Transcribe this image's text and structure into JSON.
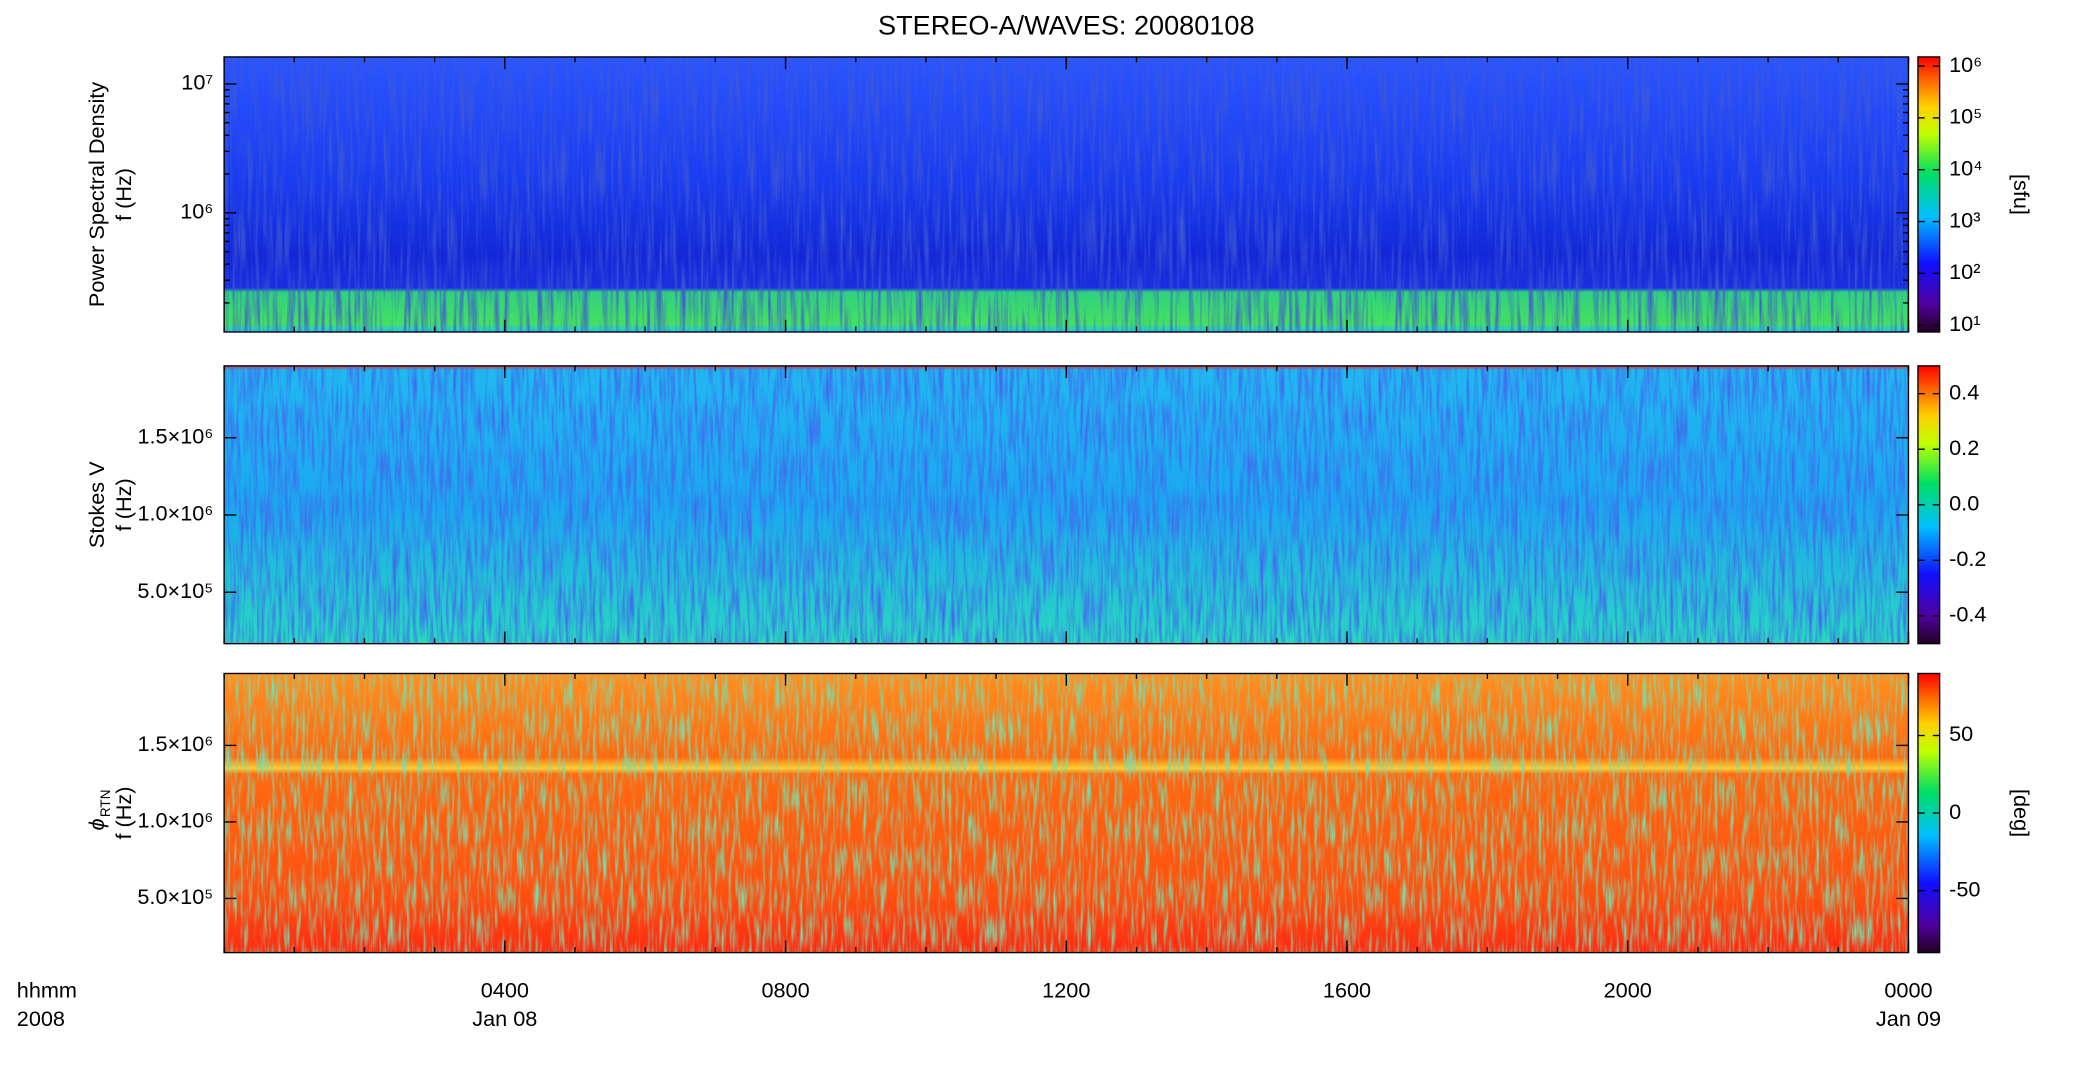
{
  "chart_data": [
    {
      "type": "spectrogram",
      "title": "STEREO-A/WAVES: 20080108",
      "ylabel": [
        "Power Spectral Density",
        "f (Hz)"
      ],
      "yscale": "log",
      "ylim": [
        119000,
        16200000
      ],
      "yticks": [
        {
          "value": 1000000,
          "label": "10⁶"
        },
        {
          "value": 10000000,
          "label": "10⁷"
        }
      ],
      "cscale": "log",
      "clim": [
        7.4,
        1500000
      ],
      "cticks": [
        {
          "value": 10,
          "label": "10¹"
        },
        {
          "value": 100,
          "label": "10²"
        },
        {
          "value": 1000,
          "label": "10³"
        },
        {
          "value": 10000,
          "label": "10⁴"
        },
        {
          "value": 100000,
          "label": "10⁵"
        },
        {
          "value": 1000000,
          "label": "10⁶"
        }
      ],
      "clabel": "[sfu]"
    },
    {
      "type": "spectrogram",
      "ylabel": [
        "Stokes V",
        "f (Hz)"
      ],
      "yscale": "linear",
      "ylim": [
        167000,
        1965000
      ],
      "yticks": [
        {
          "value": 500000,
          "label": "5.0×10⁵"
        },
        {
          "value": 1000000,
          "label": "1.0×10⁶"
        },
        {
          "value": 1500000,
          "label": "1.5×10⁶"
        }
      ],
      "cscale": "linear",
      "clim": [
        -0.5,
        0.5
      ],
      "cticks": [
        -0.4,
        -0.2,
        {
          "value": 0,
          "label": "0.0"
        },
        0.2,
        0.4
      ]
    },
    {
      "type": "spectrogram",
      "ylabel_symbol": "ϕ",
      "ylabel_subscript": "RTN",
      "ylabel": [
        "f (Hz)"
      ],
      "yscale": "linear",
      "ylim": [
        146000,
        1970000
      ],
      "yticks": [
        {
          "value": 500000,
          "label": "5.0×10⁵"
        },
        {
          "value": 1000000,
          "label": "1.0×10⁶"
        },
        {
          "value": 1500000,
          "label": "1.5×10⁶"
        }
      ],
      "cscale": "linear",
      "clim": [
        -90,
        90
      ],
      "cticks": [
        -50,
        0,
        50
      ],
      "clabel": "[deg]",
      "xlim": [
        0,
        24
      ],
      "xticks": [
        {
          "value": 4,
          "label": "0400"
        },
        {
          "value": 8,
          "label": "0800"
        },
        {
          "value": 12,
          "label": "1200"
        },
        {
          "value": 16,
          "label": "1600"
        },
        {
          "value": 20,
          "label": "2000"
        },
        {
          "value": 24,
          "label": "0000"
        }
      ],
      "xdates": [
        {
          "value": 4,
          "label": "Jan 08"
        },
        {
          "value": 24,
          "label": "Jan 09"
        }
      ],
      "xcorner": [
        "hhmm",
        "2008"
      ]
    }
  ]
}
